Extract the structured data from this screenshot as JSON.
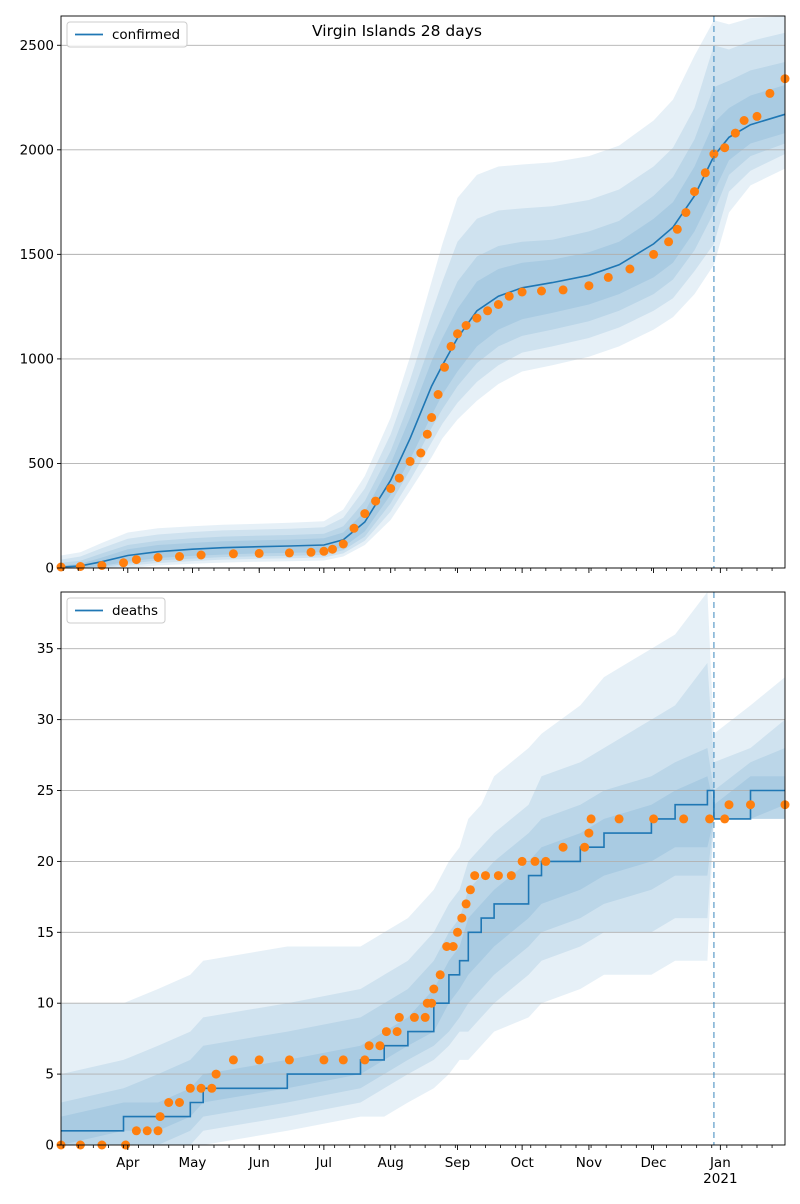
{
  "colors": {
    "model_line": "#1f77b4",
    "observed": "#ff7f0e",
    "band": "#1f77b4",
    "grid": "#b0b0b0",
    "cutoff": "#1f77b4"
  },
  "chart_data": [
    {
      "type": "line",
      "title": "Virgin Islands 28 days",
      "xlabel": "",
      "ylabel": "",
      "legend": "top-left",
      "legend_label": "confirmed",
      "grid": "horizontal",
      "ylim": [
        0,
        2640
      ],
      "yticks": [
        0,
        500,
        1000,
        1500,
        2000,
        2500
      ],
      "x_range": [
        "2020-03-01",
        "2021-01-31"
      ],
      "forecast_start": "2020-12-29",
      "model": {
        "x": [
          "2020-03-01",
          "2020-03-10",
          "2020-03-20",
          "2020-04-01",
          "2020-04-15",
          "2020-05-01",
          "2020-05-15",
          "2020-06-01",
          "2020-06-15",
          "2020-07-01",
          "2020-07-10",
          "2020-07-20",
          "2020-08-01",
          "2020-08-10",
          "2020-08-20",
          "2020-08-25",
          "2020-09-01",
          "2020-09-10",
          "2020-09-20",
          "2020-10-01",
          "2020-10-15",
          "2020-11-01",
          "2020-11-15",
          "2020-12-01",
          "2020-12-10",
          "2020-12-20",
          "2020-12-29",
          "2021-01-05",
          "2021-01-15",
          "2021-01-31"
        ],
        "y": [
          5,
          10,
          30,
          60,
          78,
          90,
          97,
          102,
          105,
          110,
          135,
          220,
          420,
          620,
          870,
          970,
          1100,
          1230,
          1300,
          1340,
          1365,
          1400,
          1450,
          1550,
          1630,
          1780,
          1970,
          2060,
          2120,
          2170
        ]
      },
      "bands": [
        {
          "lower": [
            0,
            0,
            10,
            30,
            48,
            58,
            64,
            70,
            72,
            76,
            100,
            175,
            350,
            520,
            730,
            830,
            940,
            1060,
            1140,
            1190,
            1220,
            1260,
            1310,
            1390,
            1460,
            1610,
            1800,
            1950,
            2030,
            2080
          ],
          "upper": [
            12,
            20,
            50,
            90,
            110,
            120,
            128,
            133,
            136,
            142,
            170,
            270,
            500,
            720,
            990,
            1100,
            1240,
            1370,
            1430,
            1460,
            1475,
            1510,
            1560,
            1670,
            1750,
            1920,
            2130,
            2200,
            2260,
            2310
          ]
        },
        {
          "lower": [
            0,
            0,
            5,
            20,
            36,
            45,
            52,
            56,
            58,
            62,
            85,
            150,
            310,
            470,
            670,
            760,
            870,
            980,
            1060,
            1110,
            1140,
            1180,
            1230,
            1310,
            1380,
            1520,
            1700,
            1880,
            1970,
            2030
          ],
          "upper": [
            25,
            35,
            70,
            110,
            130,
            142,
            150,
            155,
            158,
            164,
            200,
            320,
            560,
            800,
            1090,
            1210,
            1370,
            1490,
            1540,
            1560,
            1570,
            1610,
            1660,
            1780,
            1870,
            2050,
            2300,
            2330,
            2380,
            2420
          ]
        },
        {
          "lower": [
            0,
            0,
            0,
            10,
            24,
            33,
            40,
            44,
            46,
            50,
            70,
            130,
            270,
            420,
            600,
            690,
            790,
            890,
            970,
            1030,
            1060,
            1100,
            1150,
            1230,
            1290,
            1420,
            1550,
            1800,
            1900,
            1980
          ],
          "upper": [
            40,
            55,
            95,
            140,
            160,
            172,
            180,
            184,
            188,
            195,
            240,
            380,
            640,
            900,
            1220,
            1370,
            1560,
            1670,
            1710,
            1720,
            1730,
            1760,
            1810,
            1920,
            2010,
            2200,
            2500,
            2480,
            2520,
            2560
          ]
        },
        {
          "lower": [
            0,
            0,
            0,
            0,
            12,
            20,
            26,
            30,
            32,
            36,
            55,
            110,
            230,
            370,
            530,
            620,
            710,
            800,
            880,
            940,
            970,
            1010,
            1060,
            1140,
            1200,
            1310,
            1450,
            1700,
            1830,
            1910
          ],
          "upper": [
            60,
            75,
            120,
            170,
            190,
            200,
            207,
            212,
            216,
            224,
            280,
            440,
            720,
            1010,
            1370,
            1550,
            1770,
            1880,
            1920,
            1930,
            1940,
            1970,
            2020,
            2140,
            2240,
            2450,
            2620,
            2600,
            2630,
            2640
          ]
        }
      ],
      "observed": {
        "x": [
          "2020-03-01",
          "2020-03-10",
          "2020-03-20",
          "2020-03-30",
          "2020-04-05",
          "2020-04-15",
          "2020-04-25",
          "2020-05-05",
          "2020-05-20",
          "2020-06-01",
          "2020-06-15",
          "2020-06-25",
          "2020-07-01",
          "2020-07-05",
          "2020-07-10",
          "2020-07-15",
          "2020-07-20",
          "2020-07-25",
          "2020-08-01",
          "2020-08-05",
          "2020-08-10",
          "2020-08-15",
          "2020-08-18",
          "2020-08-20",
          "2020-08-23",
          "2020-08-26",
          "2020-08-29",
          "2020-09-01",
          "2020-09-05",
          "2020-09-10",
          "2020-09-15",
          "2020-09-20",
          "2020-09-25",
          "2020-10-01",
          "2020-10-10",
          "2020-10-20",
          "2020-11-01",
          "2020-11-10",
          "2020-11-20",
          "2020-12-01",
          "2020-12-08",
          "2020-12-12",
          "2020-12-16",
          "2020-12-20",
          "2020-12-25",
          "2020-12-29",
          "2021-01-03",
          "2021-01-08",
          "2021-01-12",
          "2021-01-18",
          "2021-01-24",
          "2021-01-31"
        ],
        "y": [
          5,
          7,
          12,
          25,
          40,
          50,
          55,
          62,
          68,
          70,
          72,
          75,
          80,
          90,
          115,
          190,
          260,
          320,
          380,
          430,
          510,
          550,
          640,
          720,
          830,
          960,
          1060,
          1120,
          1160,
          1195,
          1230,
          1260,
          1300,
          1320,
          1325,
          1330,
          1350,
          1390,
          1430,
          1500,
          1560,
          1620,
          1700,
          1800,
          1890,
          1980,
          2010,
          2080,
          2140,
          2160,
          2270,
          2340
        ]
      }
    },
    {
      "type": "line",
      "title": "",
      "xlabel": "",
      "ylabel": "",
      "legend": "top-left",
      "legend_label": "deaths",
      "grid": "horizontal",
      "ylim": [
        0,
        39
      ],
      "yticks": [
        0,
        5,
        10,
        15,
        20,
        25,
        30,
        35
      ],
      "x_range": [
        "2020-03-01",
        "2021-01-31"
      ],
      "xtick_dates": [
        "2020-04-01",
        "2020-05-01",
        "2020-06-01",
        "2020-07-01",
        "2020-08-01",
        "2020-09-01",
        "2020-10-01",
        "2020-11-01",
        "2020-12-01",
        "2021-01-01"
      ],
      "xtick_labels": [
        "Apr",
        "May",
        "Jun",
        "Jul",
        "Aug",
        "Sep",
        "Oct",
        "Nov",
        "Dec",
        "Jan"
      ],
      "xtick_year_label": "2021",
      "forecast_start": "2020-12-29",
      "model": {
        "x": [
          "2020-03-01",
          "2020-03-30",
          "2020-04-15",
          "2020-04-30",
          "2020-05-06",
          "2020-06-14",
          "2020-07-18",
          "2020-07-29",
          "2020-08-09",
          "2020-08-21",
          "2020-08-28",
          "2020-09-02",
          "2020-09-06",
          "2020-09-12",
          "2020-09-18",
          "2020-10-04",
          "2020-10-10",
          "2020-10-28",
          "2020-11-08",
          "2020-11-30",
          "2020-12-11",
          "2020-12-26",
          "2020-12-29",
          "2021-01-15",
          "2021-01-31"
        ],
        "y": [
          1,
          2,
          2,
          3,
          4,
          5,
          6,
          7,
          8,
          10,
          12,
          13,
          15,
          16,
          17,
          19,
          20,
          21,
          22,
          23,
          24,
          25,
          23,
          25,
          25
        ]
      },
      "bands": [
        {
          "lower": [
            0,
            1,
            1,
            2,
            3,
            4,
            5,
            6,
            7,
            8,
            10,
            11,
            12,
            13,
            14,
            16,
            17,
            18,
            19,
            20,
            21,
            21,
            23,
            23,
            24
          ],
          "upper": [
            2,
            3,
            3,
            4,
            5,
            6,
            7,
            8,
            9,
            11,
            13,
            14,
            16,
            17,
            18,
            20,
            21,
            22,
            23,
            24,
            25,
            26,
            24,
            26,
            26
          ]
        },
        {
          "lower": [
            0,
            0,
            0,
            1,
            2,
            3,
            4,
            5,
            6,
            7,
            8,
            9,
            10,
            11,
            12,
            14,
            15,
            16,
            17,
            18,
            19,
            19,
            23,
            23,
            23
          ],
          "upper": [
            3,
            4,
            5,
            6,
            7,
            8,
            9,
            10,
            11,
            13,
            15,
            16,
            18,
            19,
            20,
            22,
            23,
            24,
            25,
            26,
            27,
            28,
            25,
            27,
            28
          ]
        },
        {
          "lower": [
            0,
            0,
            0,
            0,
            1,
            2,
            3,
            4,
            5,
            6,
            7,
            8,
            8,
            9,
            10,
            12,
            13,
            14,
            15,
            15,
            16,
            16,
            23,
            23,
            23
          ],
          "upper": [
            5,
            6,
            7,
            8,
            9,
            10,
            11,
            12,
            13,
            15,
            17,
            18,
            20,
            21,
            22,
            24,
            26,
            27,
            28,
            30,
            31,
            34,
            27,
            28,
            30
          ]
        },
        {
          "lower": [
            0,
            0,
            0,
            0,
            0,
            1,
            2,
            2,
            3,
            4,
            5,
            6,
            6,
            7,
            8,
            9,
            10,
            11,
            12,
            12,
            13,
            13,
            23,
            23,
            23
          ],
          "upper": [
            10,
            10,
            11,
            12,
            13,
            14,
            14,
            15,
            16,
            18,
            20,
            21,
            23,
            24,
            26,
            28,
            29,
            31,
            33,
            35,
            36,
            39,
            29,
            31,
            33
          ]
        }
      ],
      "observed": {
        "x": [
          "2020-03-01",
          "2020-03-10",
          "2020-03-20",
          "2020-03-31",
          "2020-04-05",
          "2020-04-10",
          "2020-04-15",
          "2020-04-16",
          "2020-04-20",
          "2020-04-25",
          "2020-04-30",
          "2020-05-05",
          "2020-05-10",
          "2020-05-12",
          "2020-05-20",
          "2020-06-01",
          "2020-06-15",
          "2020-07-01",
          "2020-07-10",
          "2020-07-20",
          "2020-07-22",
          "2020-07-27",
          "2020-07-30",
          "2020-08-04",
          "2020-08-05",
          "2020-08-12",
          "2020-08-17",
          "2020-08-18",
          "2020-08-20",
          "2020-08-21",
          "2020-08-24",
          "2020-08-27",
          "2020-08-30",
          "2020-09-01",
          "2020-09-03",
          "2020-09-05",
          "2020-09-07",
          "2020-09-09",
          "2020-09-14",
          "2020-09-20",
          "2020-09-26",
          "2020-10-01",
          "2020-10-07",
          "2020-10-12",
          "2020-10-20",
          "2020-10-30",
          "2020-11-01",
          "2020-11-02",
          "2020-11-15",
          "2020-12-01",
          "2020-12-15",
          "2020-12-27",
          "2021-01-03",
          "2021-01-05",
          "2021-01-15",
          "2021-01-31"
        ],
        "y": [
          0,
          0,
          0,
          0,
          1,
          1,
          1,
          2,
          3,
          3,
          4,
          4,
          4,
          5,
          6,
          6,
          6,
          6,
          6,
          6,
          7,
          7,
          8,
          8,
          9,
          9,
          9,
          10,
          10,
          11,
          12,
          14,
          14,
          15,
          16,
          17,
          18,
          19,
          19,
          19,
          19,
          20,
          20,
          20,
          21,
          21,
          22,
          23,
          23,
          23,
          23,
          23,
          23,
          24,
          24,
          24
        ]
      }
    }
  ]
}
